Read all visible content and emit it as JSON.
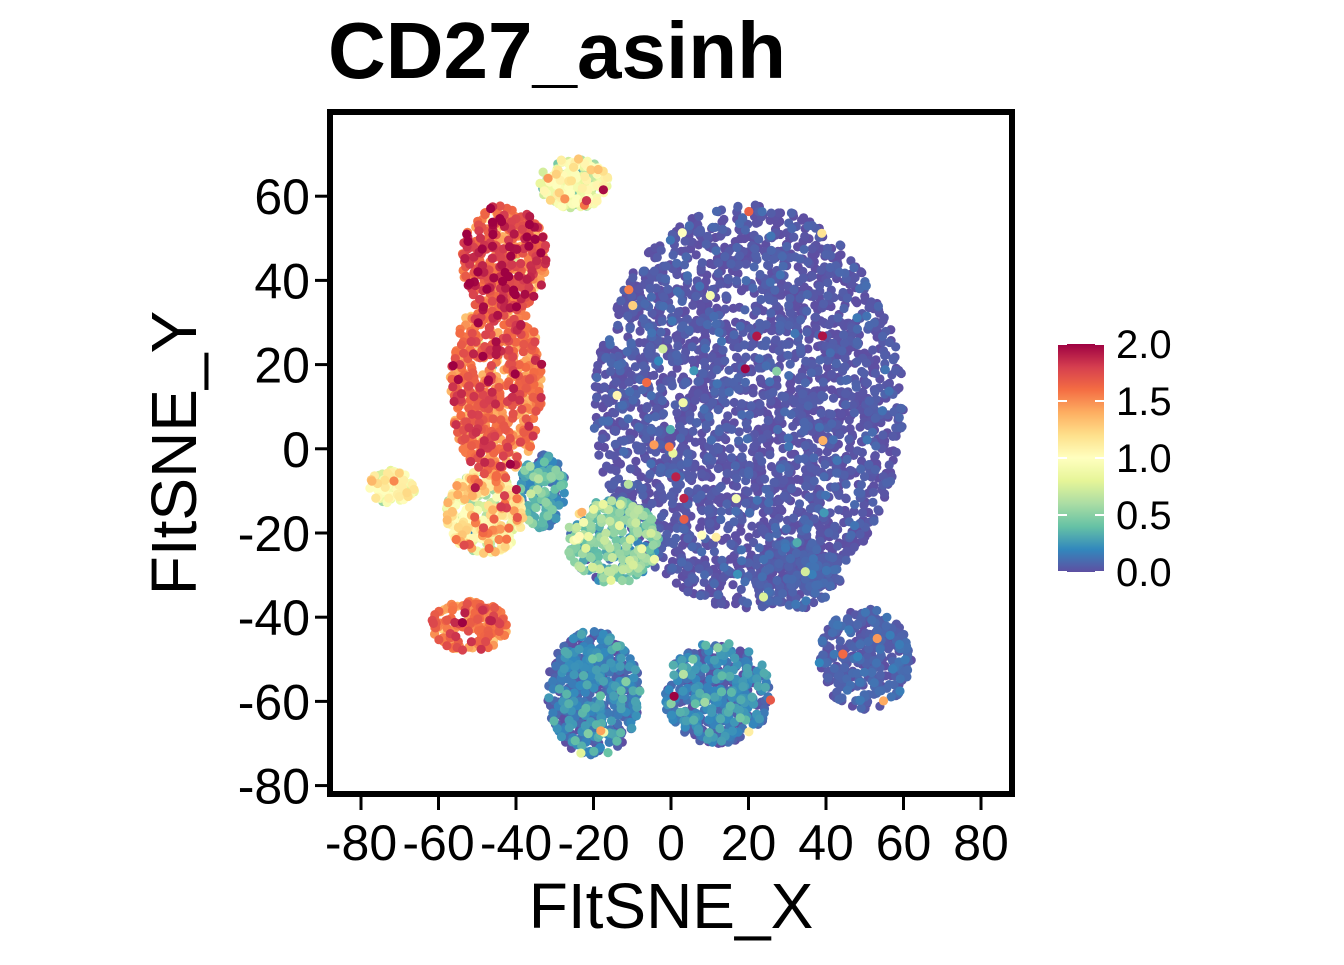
{
  "chart_data": {
    "type": "scatter",
    "title": "CD27_asinh",
    "xlabel": "FItSNE_X",
    "ylabel": "FItSNE_Y",
    "xlim": [
      -88,
      88
    ],
    "ylim": [
      -82,
      80
    ],
    "x_ticks": [
      -80,
      -60,
      -40,
      -20,
      0,
      20,
      40,
      60,
      80
    ],
    "x_tick_labels": [
      "-80",
      "-60",
      "-40",
      "-20",
      "0",
      "20",
      "40",
      "60",
      "80"
    ],
    "y_ticks": [
      -80,
      -60,
      -40,
      -20,
      0,
      20,
      40,
      60
    ],
    "y_tick_labels": [
      "-80",
      "-60",
      "-40",
      "-20",
      "0",
      "20",
      "40",
      "60"
    ],
    "grid": false,
    "legend": {
      "placement": "right",
      "type": "colorbar",
      "range": [
        0.0,
        2.0
      ],
      "ticks": [
        0.0,
        0.5,
        1.0,
        1.5,
        2.0
      ],
      "tick_labels": [
        "0.0",
        "0.5",
        "1.0",
        "1.5",
        "2.0"
      ]
    },
    "colormap": "Spectral (reversed)",
    "colormap_stops": [
      "#5e4fa2",
      "#3288bd",
      "#66c2a5",
      "#abdda4",
      "#e6f598",
      "#ffffbf",
      "#fee08b",
      "#fdae61",
      "#f46d43",
      "#d53e4f",
      "#9e0142"
    ],
    "clusters": [
      {
        "center": [
          20,
          10
        ],
        "radius": [
          40,
          48
        ],
        "value": 0.02,
        "spread": 0.04,
        "n": 2600
      },
      {
        "center": [
          -45,
          15
        ],
        "radius": [
          12,
          22
        ],
        "value": 1.55,
        "spread": 0.18,
        "n": 650
      },
      {
        "center": [
          -43,
          45
        ],
        "radius": [
          11,
          13
        ],
        "value": 1.65,
        "spread": 0.2,
        "n": 420
      },
      {
        "center": [
          -25,
          63
        ],
        "radius": [
          9,
          6
        ],
        "value": 0.85,
        "spread": 0.22,
        "n": 200
      },
      {
        "center": [
          -48,
          -15
        ],
        "radius": [
          10,
          10
        ],
        "value": 1.05,
        "spread": 0.3,
        "n": 320
      },
      {
        "center": [
          -72,
          -9
        ],
        "radius": [
          6,
          4
        ],
        "value": 0.95,
        "spread": 0.15,
        "n": 80
      },
      {
        "center": [
          -52,
          -42
        ],
        "radius": [
          10,
          6
        ],
        "value": 1.55,
        "spread": 0.15,
        "n": 180
      },
      {
        "center": [
          -33,
          -10
        ],
        "radius": [
          6,
          9
        ],
        "value": 0.25,
        "spread": 0.15,
        "n": 150
      },
      {
        "center": [
          -15,
          -22
        ],
        "radius": [
          12,
          10
        ],
        "value": 0.45,
        "spread": 0.2,
        "n": 280
      },
      {
        "center": [
          -20,
          -58
        ],
        "radius": [
          12,
          15
        ],
        "value": 0.12,
        "spread": 0.12,
        "n": 500
      },
      {
        "center": [
          12,
          -58
        ],
        "radius": [
          14,
          12
        ],
        "value": 0.12,
        "spread": 0.12,
        "n": 450
      },
      {
        "center": [
          50,
          -50
        ],
        "radius": [
          12,
          12
        ],
        "value": 0.05,
        "spread": 0.05,
        "n": 300
      },
      {
        "center": [
          32,
          -30
        ],
        "radius": [
          12,
          8
        ],
        "value": 0.04,
        "spread": 0.05,
        "n": 200
      }
    ]
  }
}
